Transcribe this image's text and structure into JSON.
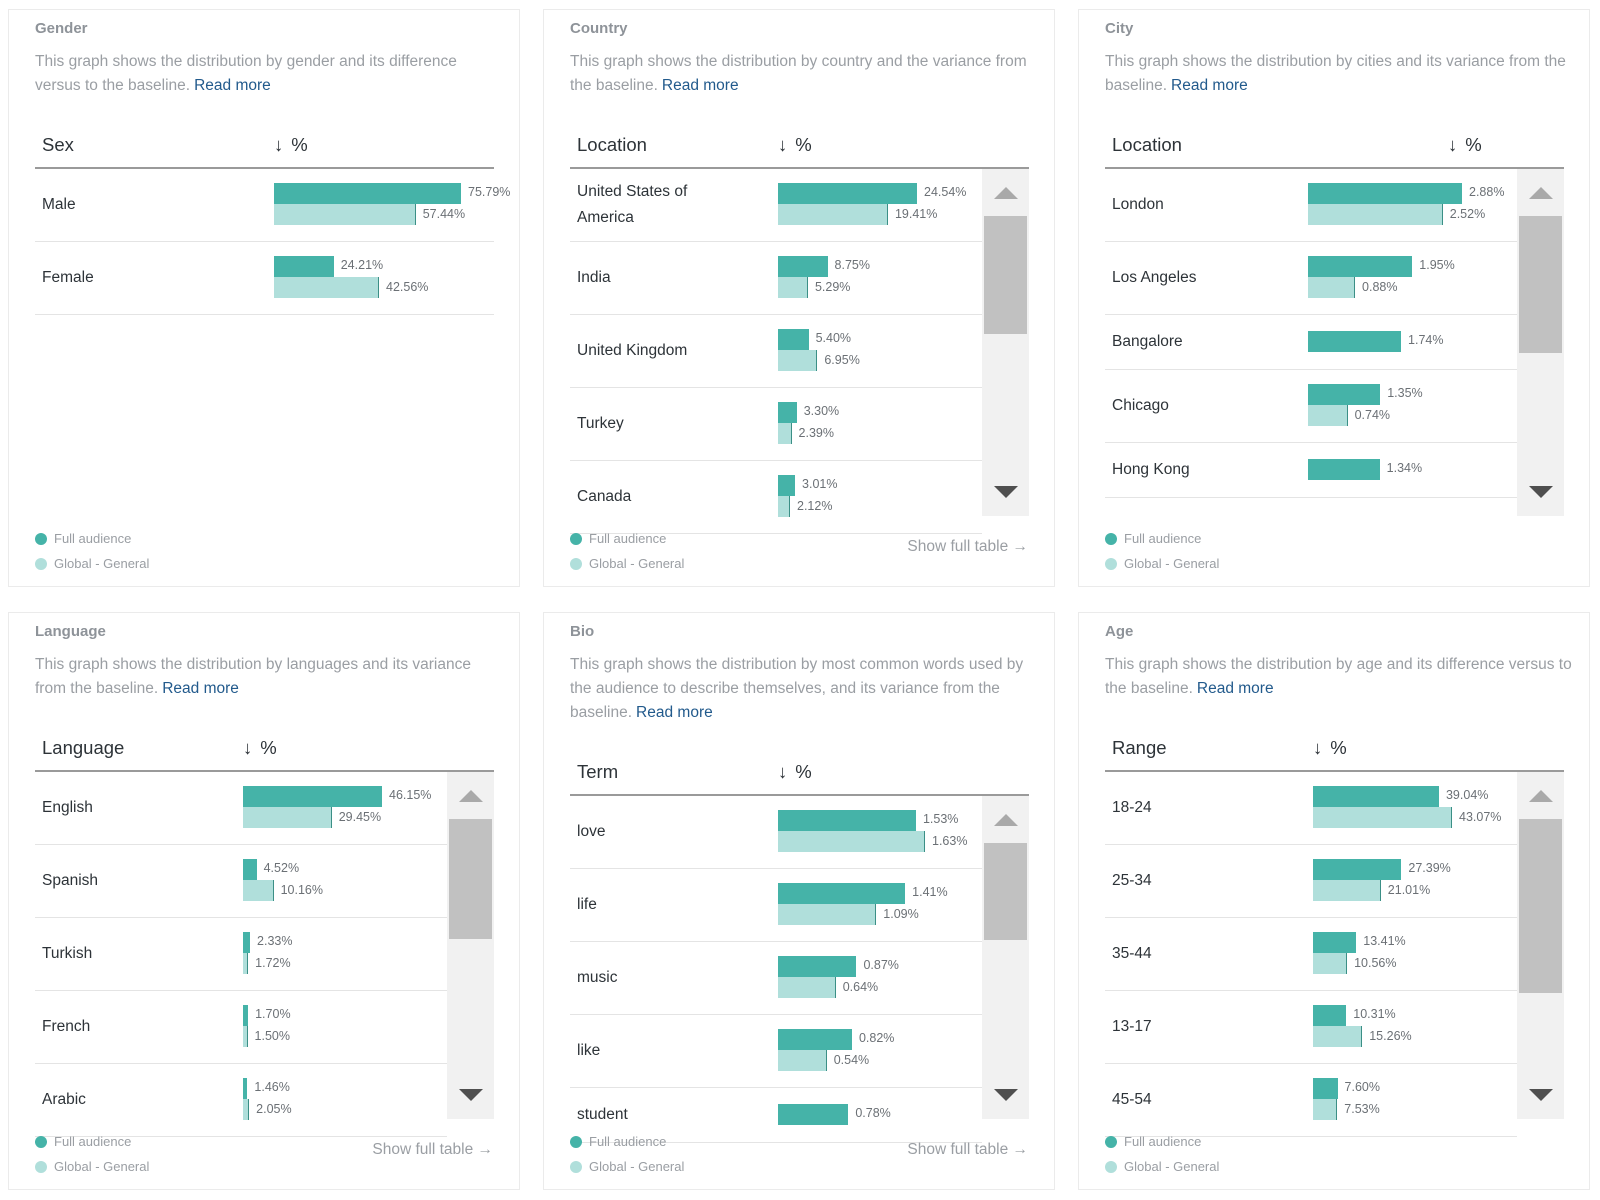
{
  "legend": {
    "full": "Full audience",
    "global": "Global - General"
  },
  "colors": {
    "full": "#45b3a8",
    "global": "#b0dfdb",
    "link": "#225a8c"
  },
  "sort_icon": "arrow-down-icon",
  "cards": [
    {
      "key": "gender",
      "title": "Gender",
      "description": "This graph shows the distribution by gender and its difference versus to the baseline.",
      "read_more": "Read more",
      "column_label": "Sex",
      "value_label": "%",
      "show_full_table": null,
      "rows": [
        {
          "label": "Male",
          "full": 75.79,
          "global": 57.44,
          "full_label": "75.79%",
          "global_label": "57.44%"
        },
        {
          "label": "Female",
          "full": 24.21,
          "global": 42.56,
          "full_label": "24.21%",
          "global_label": "42.56%"
        }
      ]
    },
    {
      "key": "country",
      "title": "Country",
      "description": "This graph shows the distribution by country and the variance from the baseline.",
      "read_more": "Read more",
      "column_label": "Location",
      "value_label": "%",
      "show_full_table": "Show full table",
      "rows": [
        {
          "label": "United States of America",
          "full": 24.54,
          "global": 19.41,
          "full_label": "24.54%",
          "global_label": "19.41%"
        },
        {
          "label": "India",
          "full": 8.75,
          "global": 5.29,
          "full_label": "8.75%",
          "global_label": "5.29%"
        },
        {
          "label": "United Kingdom",
          "full": 5.4,
          "global": 6.95,
          "full_label": "5.40%",
          "global_label": "6.95%"
        },
        {
          "label": "Turkey",
          "full": 3.3,
          "global": 2.39,
          "full_label": "3.30%",
          "global_label": "2.39%"
        },
        {
          "label": "Canada",
          "full": 3.01,
          "global": 2.12,
          "full_label": "3.01%",
          "global_label": "2.12%"
        }
      ]
    },
    {
      "key": "city",
      "title": "City",
      "description": "This graph shows the distribution by cities and its variance from the baseline.",
      "read_more": "Read more",
      "column_label": "Location",
      "value_label": "%",
      "show_full_table": null,
      "rows": [
        {
          "label": "London",
          "full": 2.88,
          "global": 2.52,
          "full_label": "2.88%",
          "global_label": "2.52%"
        },
        {
          "label": "Los Angeles",
          "full": 1.95,
          "global": 0.88,
          "full_label": "1.95%",
          "global_label": "0.88%"
        },
        {
          "label": "Bangalore",
          "full": 1.74,
          "global": null,
          "full_label": "1.74%",
          "global_label": null
        },
        {
          "label": "Chicago",
          "full": 1.35,
          "global": 0.74,
          "full_label": "1.35%",
          "global_label": "0.74%"
        },
        {
          "label": "Hong Kong",
          "full": 1.34,
          "global": null,
          "full_label": "1.34%",
          "global_label": null
        }
      ]
    },
    {
      "key": "language",
      "title": "Language",
      "description": "This graph shows the distribution by languages and its variance from the baseline.",
      "read_more": "Read more",
      "column_label": "Language",
      "value_label": "%",
      "show_full_table": "Show full table",
      "rows": [
        {
          "label": "English",
          "full": 46.15,
          "global": 29.45,
          "full_label": "46.15%",
          "global_label": "29.45%"
        },
        {
          "label": "Spanish",
          "full": 4.52,
          "global": 10.16,
          "full_label": "4.52%",
          "global_label": "10.16%"
        },
        {
          "label": "Turkish",
          "full": 2.33,
          "global": 1.72,
          "full_label": "2.33%",
          "global_label": "1.72%"
        },
        {
          "label": "French",
          "full": 1.7,
          "global": 1.5,
          "full_label": "1.70%",
          "global_label": "1.50%"
        },
        {
          "label": "Arabic",
          "full": 1.46,
          "global": 2.05,
          "full_label": "1.46%",
          "global_label": "2.05%"
        }
      ]
    },
    {
      "key": "bio",
      "title": "Bio",
      "description": "This graph shows the distribution by most common words used by the audience to describe themselves, and its variance from the baseline.",
      "read_more": "Read more",
      "column_label": "Term",
      "value_label": "%",
      "show_full_table": "Show full table",
      "rows": [
        {
          "label": "love",
          "full": 1.53,
          "global": 1.63,
          "full_label": "1.53%",
          "global_label": "1.63%"
        },
        {
          "label": "life",
          "full": 1.41,
          "global": 1.09,
          "full_label": "1.41%",
          "global_label": "1.09%"
        },
        {
          "label": "music",
          "full": 0.87,
          "global": 0.64,
          "full_label": "0.87%",
          "global_label": "0.64%"
        },
        {
          "label": "like",
          "full": 0.82,
          "global": 0.54,
          "full_label": "0.82%",
          "global_label": "0.54%"
        },
        {
          "label": "student",
          "full": 0.78,
          "global": null,
          "full_label": "0.78%",
          "global_label": null
        }
      ]
    },
    {
      "key": "age",
      "title": "Age",
      "description": "This graph shows the distribution by age and its difference versus to the baseline.",
      "read_more": "Read more",
      "column_label": "Range",
      "value_label": "%",
      "show_full_table": null,
      "rows": [
        {
          "label": "18-24",
          "full": 39.04,
          "global": 43.07,
          "full_label": "39.04%",
          "global_label": "43.07%"
        },
        {
          "label": "25-34",
          "full": 27.39,
          "global": 21.01,
          "full_label": "27.39%",
          "global_label": "21.01%"
        },
        {
          "label": "35-44",
          "full": 13.41,
          "global": 10.56,
          "full_label": "13.41%",
          "global_label": "10.56%"
        },
        {
          "label": "13-17",
          "full": 10.31,
          "global": 15.26,
          "full_label": "10.31%",
          "global_label": "15.26%"
        },
        {
          "label": "45-54",
          "full": 7.6,
          "global": 7.53,
          "full_label": "7.60%",
          "global_label": "7.53%"
        }
      ]
    }
  ]
}
